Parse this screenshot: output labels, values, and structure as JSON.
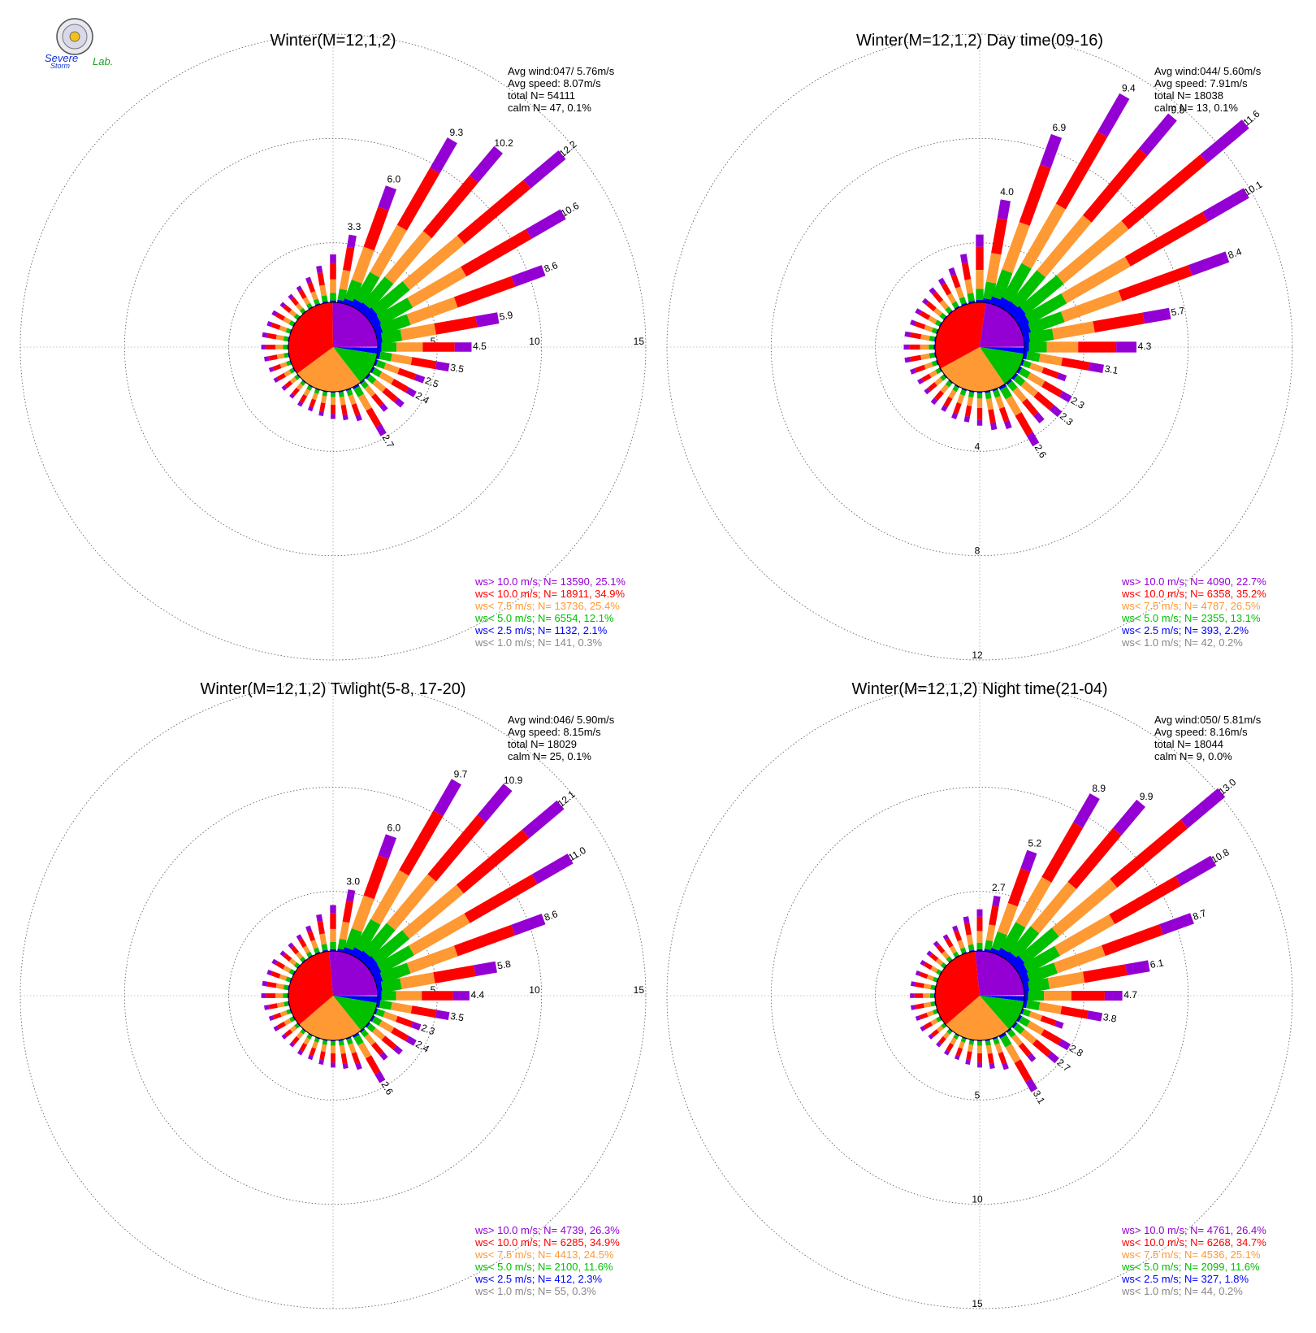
{
  "logo": {
    "line1": "Severe",
    "line2": "Storm",
    "line3": "Lab."
  },
  "colors": {
    "ws_gt_10": "#9400d3",
    "ws_lt_10": "#ff0000",
    "ws_lt_7_5": "#ff9933",
    "ws_lt_5": "#00c000",
    "ws_lt_2_5": "#0000ff",
    "ws_lt_1": "#888888",
    "ring": "#555555",
    "axis": "#888888"
  },
  "chart_data": [
    {
      "type": "windrose",
      "title": "Winter(M=12,1,2)",
      "stats": [
        "Avg wind:047/ 5.76m/s",
        "Avg speed: 8.07m/s",
        "total N=       54111",
        "calm N=      47,   0.1%"
      ],
      "ring_labels": [
        "5",
        "10",
        "15"
      ],
      "ring_label_axis": "east",
      "ring_max": 15,
      "directions_deg": [
        10,
        20,
        30,
        40,
        50,
        60,
        70,
        80,
        90,
        100,
        110,
        120,
        130,
        140,
        150,
        160,
        170,
        180,
        190,
        200,
        210,
        220,
        230,
        240,
        250,
        260,
        270,
        280,
        290,
        300,
        310,
        320,
        330,
        340,
        350,
        360
      ],
      "totals": [
        3.3,
        6.0,
        9.3,
        10.2,
        12.2,
        10.6,
        8.6,
        5.9,
        4.5,
        3.5,
        2.5,
        2.4,
        2.2,
        1.8,
        2.7,
        1.6,
        1.4,
        1.3,
        1.2,
        1.1,
        1.1,
        1.0,
        1.0,
        1.1,
        1.1,
        1.2,
        1.3,
        1.3,
        1.2,
        1.2,
        1.1,
        1.1,
        1.2,
        1.4,
        1.8,
        2.3
      ],
      "labeled": [
        3.3,
        6.0,
        9.3,
        10.2,
        12.2,
        10.6,
        8.6,
        5.9,
        4.5,
        3.5,
        2.5,
        2.4,
        null,
        null,
        2.7,
        null,
        null,
        null,
        null,
        null,
        null,
        null,
        null,
        null,
        null,
        null,
        null,
        null,
        null,
        null,
        null,
        null,
        null,
        null,
        null,
        null
      ],
      "pie": [
        0.3,
        2.1,
        12.1,
        25.4,
        34.9,
        25.1
      ],
      "legend": [
        {
          "text": "ws> 10.0 m/s; N= 13590, 25.1%",
          "color": "#9400d3"
        },
        {
          "text": "ws< 10.0 m/s; N= 18911, 34.9%",
          "color": "#ff0000"
        },
        {
          "text": "ws<  7.5 m/s; N= 13736, 25.4%",
          "color": "#ff9933"
        },
        {
          "text": "ws<  5.0 m/s; N=  6554, 12.1%",
          "color": "#00c000"
        },
        {
          "text": "ws<  2.5 m/s; N=  1132,  2.1%",
          "color": "#0000ff"
        },
        {
          "text": "ws<  1.0 m/s; N=   141,  0.3%",
          "color": "#888888"
        }
      ]
    },
    {
      "type": "windrose",
      "title": "Winter(M=12,1,2) Day time(09-16)",
      "stats": [
        "Avg wind:044/ 5.60m/s",
        "Avg speed: 7.91m/s",
        "total N=       18038",
        "calm N=      13,   0.1%"
      ],
      "ring_labels": [
        "4",
        "8",
        "12"
      ],
      "ring_label_axis": "south",
      "ring_max": 12,
      "directions_deg": [
        10,
        20,
        30,
        40,
        50,
        60,
        70,
        80,
        90,
        100,
        110,
        120,
        130,
        140,
        150,
        160,
        170,
        180,
        190,
        200,
        210,
        220,
        230,
        240,
        250,
        260,
        270,
        280,
        290,
        300,
        310,
        320,
        330,
        340,
        350,
        360
      ],
      "totals": [
        4.0,
        6.9,
        9.4,
        9.8,
        11.6,
        10.1,
        8.4,
        5.7,
        4.3,
        3.1,
        1.8,
        2.3,
        2.3,
        2.0,
        2.6,
        1.6,
        1.5,
        1.3,
        1.2,
        1.2,
        1.1,
        1.1,
        1.0,
        1.0,
        1.1,
        1.2,
        1.2,
        1.2,
        1.1,
        1.1,
        1.1,
        1.2,
        1.3,
        1.5,
        1.9,
        2.6
      ],
      "labeled": [
        4.0,
        6.9,
        9.4,
        9.8,
        11.6,
        10.1,
        8.4,
        5.7,
        4.3,
        3.1,
        null,
        2.3,
        2.3,
        null,
        2.6,
        null,
        null,
        null,
        null,
        null,
        null,
        null,
        null,
        null,
        null,
        null,
        null,
        null,
        null,
        null,
        null,
        null,
        null,
        null,
        null,
        null
      ],
      "pie": [
        0.2,
        2.2,
        13.1,
        26.5,
        35.2,
        22.7
      ],
      "legend": [
        {
          "text": "ws> 10.0 m/s; N=  4090, 22.7%",
          "color": "#9400d3"
        },
        {
          "text": "ws< 10.0 m/s; N=  6358, 35.2%",
          "color": "#ff0000"
        },
        {
          "text": "ws<  7.5 m/s; N=  4787, 26.5%",
          "color": "#ff9933"
        },
        {
          "text": "ws<  5.0 m/s; N=  2355, 13.1%",
          "color": "#00c000"
        },
        {
          "text": "ws<  2.5 m/s; N=   393,  2.2%",
          "color": "#0000ff"
        },
        {
          "text": "ws<  1.0 m/s; N=    42,  0.2%",
          "color": "#888888"
        }
      ]
    },
    {
      "type": "windrose",
      "title": "Winter(M=12,1,2) Twlight(5-8, 17-20)",
      "stats": [
        "Avg wind:046/ 5.90m/s",
        "Avg speed: 8.15m/s",
        "total N=       18029",
        "calm N=      25,   0.1%"
      ],
      "ring_labels": [
        "5",
        "10",
        "15"
      ],
      "ring_label_axis": "east",
      "ring_max": 15,
      "directions_deg": [
        10,
        20,
        30,
        40,
        50,
        60,
        70,
        80,
        90,
        100,
        110,
        120,
        130,
        140,
        150,
        160,
        170,
        180,
        190,
        200,
        210,
        220,
        230,
        240,
        250,
        260,
        270,
        280,
        290,
        300,
        310,
        320,
        330,
        340,
        350,
        360
      ],
      "totals": [
        3.0,
        6.0,
        9.7,
        10.9,
        12.1,
        11.0,
        8.6,
        5.8,
        4.4,
        3.5,
        2.3,
        2.4,
        2.1,
        1.8,
        2.6,
        1.6,
        1.4,
        1.3,
        1.2,
        1.1,
        1.1,
        1.0,
        1.0,
        1.1,
        1.1,
        1.2,
        1.3,
        1.3,
        1.2,
        1.2,
        1.1,
        1.1,
        1.2,
        1.4,
        1.8,
        2.2
      ],
      "labeled": [
        3.0,
        6.0,
        9.7,
        10.9,
        12.1,
        11.0,
        8.6,
        5.8,
        4.4,
        3.5,
        2.3,
        2.4,
        null,
        null,
        2.6,
        null,
        null,
        null,
        null,
        null,
        null,
        null,
        null,
        null,
        null,
        null,
        null,
        null,
        null,
        null,
        null,
        null,
        null,
        null,
        null,
        null
      ],
      "pie": [
        0.3,
        2.3,
        11.6,
        24.5,
        34.9,
        26.3
      ],
      "legend": [
        {
          "text": "ws> 10.0 m/s; N=  4739, 26.3%",
          "color": "#9400d3"
        },
        {
          "text": "ws< 10.0 m/s; N=  6285, 34.9%",
          "color": "#ff0000"
        },
        {
          "text": "ws<  7.5 m/s; N=  4413, 24.5%",
          "color": "#ff9933"
        },
        {
          "text": "ws<  5.0 m/s; N=  2100, 11.6%",
          "color": "#00c000"
        },
        {
          "text": "ws<  2.5 m/s; N=   412,  2.3%",
          "color": "#0000ff"
        },
        {
          "text": "ws<  1.0 m/s; N=    55,  0.3%",
          "color": "#888888"
        }
      ]
    },
    {
      "type": "windrose",
      "title": "Winter(M=12,1,2) Night time(21-04)",
      "stats": [
        "Avg wind:050/ 5.81m/s",
        "Avg speed: 8.16m/s",
        "total N=       18044",
        "calm N=       9,   0.0%"
      ],
      "ring_labels": [
        "5",
        "10",
        "15"
      ],
      "ring_label_axis": "south",
      "ring_max": 15,
      "directions_deg": [
        10,
        20,
        30,
        40,
        50,
        60,
        70,
        80,
        90,
        100,
        110,
        120,
        130,
        140,
        150,
        160,
        170,
        180,
        190,
        200,
        210,
        220,
        230,
        240,
        250,
        260,
        270,
        280,
        290,
        300,
        310,
        320,
        330,
        340,
        350,
        360
      ],
      "totals": [
        2.7,
        5.2,
        8.9,
        9.9,
        13.0,
        10.8,
        8.7,
        6.1,
        4.7,
        3.8,
        2.1,
        2.8,
        2.7,
        1.9,
        3.1,
        1.6,
        1.4,
        1.3,
        1.2,
        1.1,
        1.1,
        1.0,
        1.0,
        1.1,
        1.1,
        1.2,
        1.2,
        1.2,
        1.1,
        1.1,
        1.1,
        1.2,
        1.2,
        1.4,
        1.7,
        2.0
      ],
      "labeled": [
        2.7,
        5.2,
        8.9,
        9.9,
        13.0,
        10.8,
        8.7,
        6.1,
        4.7,
        3.8,
        null,
        2.8,
        2.7,
        null,
        3.1,
        null,
        null,
        null,
        null,
        null,
        null,
        null,
        null,
        null,
        null,
        null,
        null,
        null,
        null,
        null,
        null,
        null,
        null,
        null,
        null,
        null
      ],
      "pie": [
        0.2,
        1.8,
        11.6,
        25.1,
        34.7,
        26.4
      ],
      "legend": [
        {
          "text": "ws> 10.0 m/s; N=  4761, 26.4%",
          "color": "#9400d3"
        },
        {
          "text": "ws< 10.0 m/s; N=  6268, 34.7%",
          "color": "#ff0000"
        },
        {
          "text": "ws<  7.5 m/s; N=  4536, 25.1%",
          "color": "#ff9933"
        },
        {
          "text": "ws<  5.0 m/s; N=  2099, 11.6%",
          "color": "#00c000"
        },
        {
          "text": "ws<  2.5 m/s; N=   327,  1.8%",
          "color": "#0000ff"
        },
        {
          "text": "ws<  1.0 m/s; N=    44,  0.2%",
          "color": "#888888"
        }
      ]
    }
  ]
}
